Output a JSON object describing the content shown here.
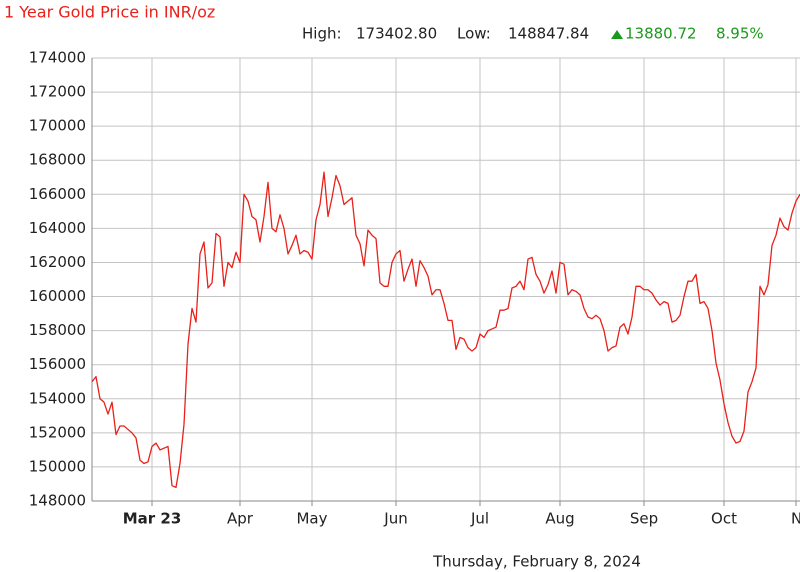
{
  "chart_data": {
    "type": "line",
    "title": "1 Year Gold Price in INR/oz",
    "stats": {
      "high_label": "High:",
      "high": "173402.80",
      "low_label": "Low:",
      "low": "148847.84",
      "change": "13880.72",
      "change_pct": "8.95%"
    },
    "date": "Thursday, February 8, 2024",
    "color": "#e8211a",
    "grid": true,
    "values": [
      155000,
      155300,
      154000,
      153800,
      153100,
      153800,
      151900,
      152400,
      152400,
      152200,
      152000,
      151700,
      150400,
      150200,
      150300,
      151200,
      151400,
      151000,
      151100,
      151200,
      148900,
      148800,
      150200,
      152500,
      157200,
      159300,
      158500,
      162500,
      163200,
      160500,
      160800,
      163700,
      163500,
      160600,
      162000,
      161700,
      162600,
      162000,
      166000,
      165600,
      164700,
      164500,
      163200,
      164700,
      166700,
      164000,
      163800,
      164800,
      164000,
      162500,
      163000,
      163600,
      162500,
      162700,
      162600,
      162200,
      164500,
      165400,
      167300,
      164700,
      165800,
      167100,
      166500,
      165400,
      165600,
      165800,
      163600,
      163100,
      161800,
      163900,
      163600,
      163400,
      160800,
      160600,
      160600,
      162000,
      162500,
      162700,
      160900,
      161600,
      162200,
      160600,
      162100,
      161700,
      161200,
      160100,
      160400,
      160400,
      159600,
      158600,
      158600,
      156900,
      157600,
      157500,
      157000,
      156800,
      157000,
      157800,
      157600,
      158000,
      158100,
      158200,
      159200,
      159200,
      159300,
      160500,
      160600,
      160900,
      160400,
      162200,
      162300,
      161300,
      160900,
      160200,
      160700,
      161500,
      160200,
      162000,
      161900,
      160100,
      160400,
      160300,
      160100,
      159300,
      158800,
      158700,
      158900,
      158700,
      158000,
      156800,
      157000,
      157100,
      158200,
      158400,
      157800,
      158800,
      160600,
      160600,
      160400,
      160400,
      160200,
      159800,
      159500,
      159700,
      159600,
      158500,
      158600,
      158900,
      160000,
      160900,
      160900,
      161300,
      159600,
      159700,
      159300,
      158000,
      156100,
      155100,
      153700,
      152600,
      151800,
      151400,
      151500,
      152100,
      154400,
      155000,
      155800,
      160600,
      160100,
      160700,
      163000,
      163600,
      164600,
      164100,
      163900,
      164900,
      165600,
      166000
    ],
    "xlim": [
      0,
      177
    ],
    "xticks": [
      {
        "value": 15,
        "label": "Mar 23"
      },
      {
        "value": 37,
        "label": "Apr"
      },
      {
        "value": 55,
        "label": "May"
      },
      {
        "value": 76,
        "label": "Jun"
      },
      {
        "value": 97,
        "label": "Jul"
      },
      {
        "value": 117,
        "label": "Aug"
      },
      {
        "value": 138,
        "label": "Sep"
      },
      {
        "value": 158,
        "label": "Oct"
      },
      {
        "value": 176,
        "label": "N"
      }
    ],
    "ylim": [
      148000,
      174000
    ],
    "yticks": [
      148000,
      150000,
      152000,
      154000,
      156000,
      158000,
      160000,
      162000,
      164000,
      166000,
      168000,
      170000,
      172000,
      174000
    ]
  }
}
